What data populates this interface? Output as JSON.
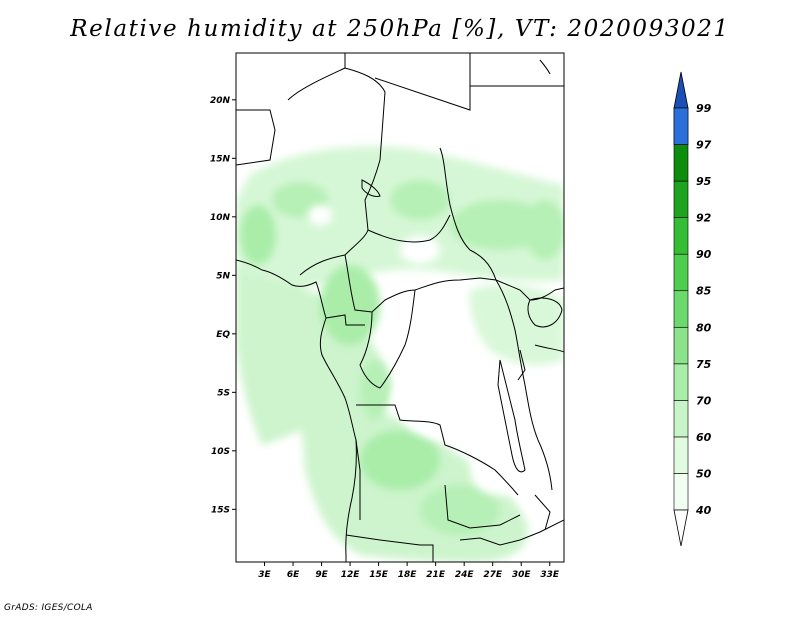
{
  "title": "Relative humidity at 250hPa [%], VT: 2020093021",
  "footer": "GrADS: IGES/COLA",
  "map": {
    "lon_range": [
      0,
      34.5
    ],
    "lat_range": [
      -19.5,
      24
    ],
    "lat_ticks": [
      {
        "value": 20,
        "label": "20N"
      },
      {
        "value": 15,
        "label": "15N"
      },
      {
        "value": 10,
        "label": "10N"
      },
      {
        "value": 5,
        "label": "5N"
      },
      {
        "value": 0,
        "label": "EQ"
      },
      {
        "value": -5,
        "label": "5S"
      },
      {
        "value": -10,
        "label": "10S"
      },
      {
        "value": -15,
        "label": "15S"
      }
    ],
    "lon_ticks": [
      {
        "value": 3,
        "label": "3E"
      },
      {
        "value": 6,
        "label": "6E"
      },
      {
        "value": 9,
        "label": "9E"
      },
      {
        "value": 12,
        "label": "12E"
      },
      {
        "value": 15,
        "label": "15E"
      },
      {
        "value": 18,
        "label": "18E"
      },
      {
        "value": 21,
        "label": "21E"
      },
      {
        "value": 24,
        "label": "24E"
      },
      {
        "value": 27,
        "label": "27E"
      },
      {
        "value": 30,
        "label": "30E"
      },
      {
        "value": 33,
        "label": "33E"
      }
    ]
  },
  "colorbar": {
    "levels": [
      {
        "label": "40",
        "color": "#f2fef2"
      },
      {
        "label": "50",
        "color": "#e0fbe0"
      },
      {
        "label": "60",
        "color": "#c7f5c7"
      },
      {
        "label": "70",
        "color": "#a9eda9"
      },
      {
        "label": "75",
        "color": "#8be38b"
      },
      {
        "label": "80",
        "color": "#6cd96c"
      },
      {
        "label": "85",
        "color": "#4fcd4f"
      },
      {
        "label": "90",
        "color": "#36bd36"
      },
      {
        "label": "92",
        "color": "#1fa41f"
      },
      {
        "label": "95",
        "color": "#0e8c0e"
      },
      {
        "label": "97",
        "color": "#4a9cf0"
      },
      {
        "label": "99",
        "color": "#2a70d8"
      }
    ],
    "top_triangle_color": "#1b4fb8",
    "bottom_triangle_color": "#ffffff"
  }
}
